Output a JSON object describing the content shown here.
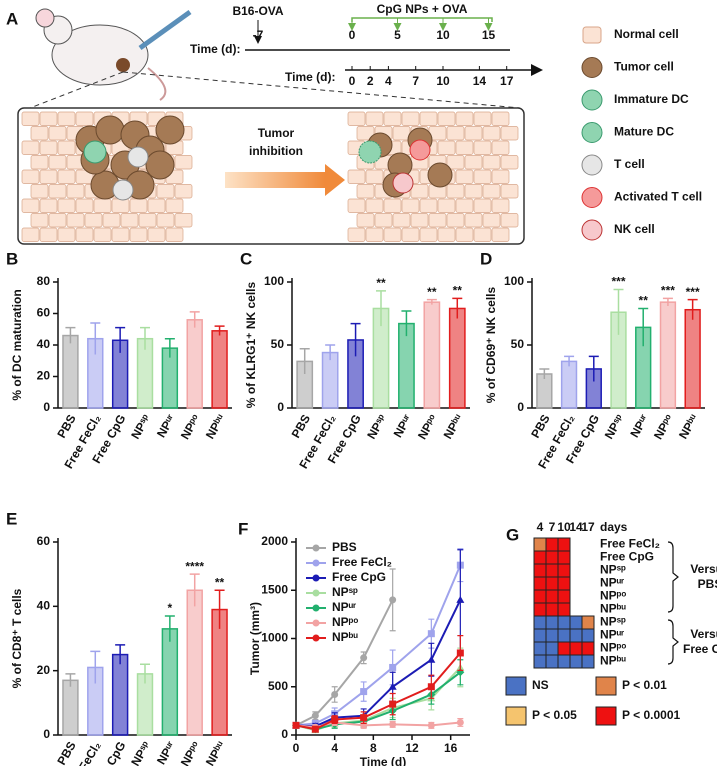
{
  "diagram": {
    "panel": "A",
    "b16": "B16-OVA",
    "treatment": "CpG NPs + OVA",
    "time_label_top": "Time (d):",
    "time_top": [
      -7,
      0,
      5,
      10,
      15
    ],
    "time_label_bottom": "Time (d):",
    "time_bottom": [
      0,
      2,
      4,
      7,
      10,
      14,
      17
    ],
    "arrow_label": [
      "Tumor",
      "inhibition"
    ],
    "legend": [
      "Normal cell",
      "Tumor cell",
      "Immature DC",
      "Mature DC",
      "T cell",
      "Activated T cell",
      "NK cell"
    ]
  },
  "chart_data": [
    {
      "type": "bar",
      "panel": "B",
      "ylabel": "% of DC maturation",
      "categories": [
        "PBS",
        "Free FeCl₂",
        "Free CpG",
        "NPˢᵖ",
        "NPᵘʳ",
        "NPᵖᵒ",
        "NPᵇᵘ"
      ],
      "colors": [
        "#a6a6a6",
        "#9fa3ec",
        "#1c1cb4",
        "#a9dea0",
        "#22b06e",
        "#f2a3a3",
        "#e11d1d"
      ],
      "values": [
        46,
        44,
        43,
        44,
        38,
        56,
        49
      ],
      "errors": [
        5,
        10,
        8,
        7,
        6,
        5,
        3
      ],
      "ylim": [
        0,
        80
      ],
      "yticks": [
        0,
        20,
        40,
        60,
        80
      ]
    },
    {
      "type": "bar",
      "panel": "C",
      "ylabel": "% of KLRG1⁺ NK cells",
      "categories": [
        "PBS",
        "Free FeCl₂",
        "Free CpG",
        "NPˢᵖ",
        "NPᵘʳ",
        "NPᵖᵒ",
        "NPᵇᵘ"
      ],
      "colors": [
        "#a6a6a6",
        "#9fa3ec",
        "#1c1cb4",
        "#a9dea0",
        "#22b06e",
        "#f2a3a3",
        "#e11d1d"
      ],
      "values": [
        37,
        44,
        54,
        79,
        67,
        84,
        79
      ],
      "errors": [
        10,
        6,
        13,
        14,
        10,
        2,
        8
      ],
      "significance": [
        null,
        null,
        null,
        "**",
        null,
        "**",
        "**"
      ],
      "ylim": [
        0,
        100
      ],
      "yticks": [
        0,
        50,
        100
      ]
    },
    {
      "type": "bar",
      "panel": "D",
      "ylabel": "% of CD69⁺ NK cells",
      "categories": [
        "PBS",
        "Free FeCl₂",
        "Free CpG",
        "NPˢᵖ",
        "NPᵘʳ",
        "NPᵖᵒ",
        "NPᵇᵘ"
      ],
      "colors": [
        "#a6a6a6",
        "#9fa3ec",
        "#1c1cb4",
        "#a9dea0",
        "#22b06e",
        "#f2a3a3",
        "#e11d1d"
      ],
      "values": [
        27,
        37,
        31,
        76,
        64,
        84,
        78
      ],
      "errors": [
        4,
        4,
        10,
        18,
        15,
        3,
        8
      ],
      "significance": [
        null,
        null,
        null,
        "***",
        "**",
        "***",
        "***"
      ],
      "ylim": [
        0,
        100
      ],
      "yticks": [
        0,
        50,
        100
      ]
    },
    {
      "type": "bar",
      "panel": "E",
      "ylabel": "% of CD8⁺ T cells",
      "categories": [
        "PBS",
        "Free FeCl₂",
        "Free CpG",
        "NPˢᵖ",
        "NPᵘʳ",
        "NPᵖᵒ",
        "NPᵇᵘ"
      ],
      "colors": [
        "#a6a6a6",
        "#9fa3ec",
        "#1c1cb4",
        "#a9dea0",
        "#22b06e",
        "#f2a3a3",
        "#e11d1d"
      ],
      "values": [
        17,
        21,
        25,
        19,
        33,
        45,
        39
      ],
      "errors": [
        2,
        5,
        3,
        3,
        4,
        5,
        6
      ],
      "significance": [
        null,
        null,
        null,
        null,
        "*",
        "****",
        "**"
      ],
      "ylim": [
        0,
        60
      ],
      "yticks": [
        0,
        20,
        40,
        60
      ]
    },
    {
      "type": "line",
      "panel": "F",
      "xlabel": "Time (d)",
      "ylabel": "Tumor (mm³)",
      "x": [
        0,
        2,
        4,
        7,
        10,
        14,
        17
      ],
      "xlim": [
        0,
        18
      ],
      "xticks": [
        0,
        4,
        8,
        12,
        16
      ],
      "ylim": [
        0,
        2000
      ],
      "yticks": [
        0,
        500,
        1000,
        1500,
        2000
      ],
      "series": [
        {
          "name": "PBS",
          "color": "#a6a6a6",
          "values": [
            100,
            200,
            420,
            800,
            1400,
            null,
            null
          ],
          "errors": [
            20,
            40,
            80,
            60,
            320,
            null,
            null
          ]
        },
        {
          "name": "Free FeCl₂",
          "color": "#9fa3ec",
          "values": [
            100,
            120,
            220,
            450,
            700,
            1050,
            1760
          ],
          "errors": [
            20,
            30,
            60,
            100,
            180,
            150,
            170
          ]
        },
        {
          "name": "Free CpG",
          "color": "#1c1cb4",
          "values": [
            100,
            90,
            180,
            200,
            500,
            780,
            1400
          ],
          "errors": [
            20,
            30,
            50,
            70,
            150,
            170,
            520
          ]
        },
        {
          "name": "NPˢᵖ",
          "color": "#a9dea0",
          "values": [
            100,
            50,
            120,
            150,
            280,
            380,
            700
          ],
          "errors": [
            20,
            20,
            40,
            60,
            100,
            120,
            200
          ]
        },
        {
          "name": "NPᵘʳ",
          "color": "#22b06e",
          "values": [
            100,
            60,
            110,
            140,
            250,
            420,
            650
          ],
          "errors": [
            20,
            20,
            40,
            60,
            90,
            100,
            130
          ]
        },
        {
          "name": "NPᵖᵒ",
          "color": "#f2a3a3",
          "values": [
            100,
            80,
            130,
            100,
            110,
            100,
            130
          ],
          "errors": [
            20,
            20,
            30,
            30,
            30,
            30,
            40
          ]
        },
        {
          "name": "NPᵇᵘ",
          "color": "#e11d1d",
          "values": [
            100,
            60,
            160,
            180,
            320,
            500,
            850
          ],
          "errors": [
            20,
            20,
            40,
            60,
            110,
            120,
            180
          ]
        }
      ]
    },
    {
      "type": "heatmap",
      "panel": "G",
      "columns": [
        4,
        7,
        10,
        14,
        17
      ],
      "column_unit": "days",
      "levels": [
        {
          "label": "NS",
          "color": "#4a72c4"
        },
        {
          "label": "P < 0.01",
          "color": "#e0844a"
        },
        {
          "label": "P < 0.05",
          "color": "#f5c46e"
        },
        {
          "label": "P < 0.0001",
          "color": "#ee1111"
        }
      ],
      "groups": [
        {
          "label": [
            "Versus",
            "PBS"
          ],
          "rows": [
            {
              "name": "Free FeCl₂",
              "cells": [
                1,
                3,
                3,
                null,
                null
              ]
            },
            {
              "name": "Free CpG",
              "cells": [
                3,
                3,
                3,
                null,
                null
              ]
            },
            {
              "name": "NPˢᵖ",
              "cells": [
                3,
                3,
                3,
                null,
                null
              ]
            },
            {
              "name": "NPᵘʳ",
              "cells": [
                3,
                3,
                3,
                null,
                null
              ]
            },
            {
              "name": "NPᵖᵒ",
              "cells": [
                3,
                3,
                3,
                null,
                null
              ]
            },
            {
              "name": "NPᵇᵘ",
              "cells": [
                3,
                3,
                3,
                null,
                null
              ]
            }
          ]
        },
        {
          "label": [
            "Versus",
            "Free CpG"
          ],
          "rows": [
            {
              "name": "NPˢᵖ",
              "cells": [
                0,
                0,
                0,
                0,
                1
              ]
            },
            {
              "name": "NPᵘʳ",
              "cells": [
                0,
                0,
                0,
                0,
                0
              ]
            },
            {
              "name": "NPᵖᵒ",
              "cells": [
                0,
                0,
                3,
                3,
                3
              ]
            },
            {
              "name": "NPᵇᵘ",
              "cells": [
                0,
                0,
                0,
                0,
                0
              ]
            }
          ]
        }
      ]
    }
  ]
}
